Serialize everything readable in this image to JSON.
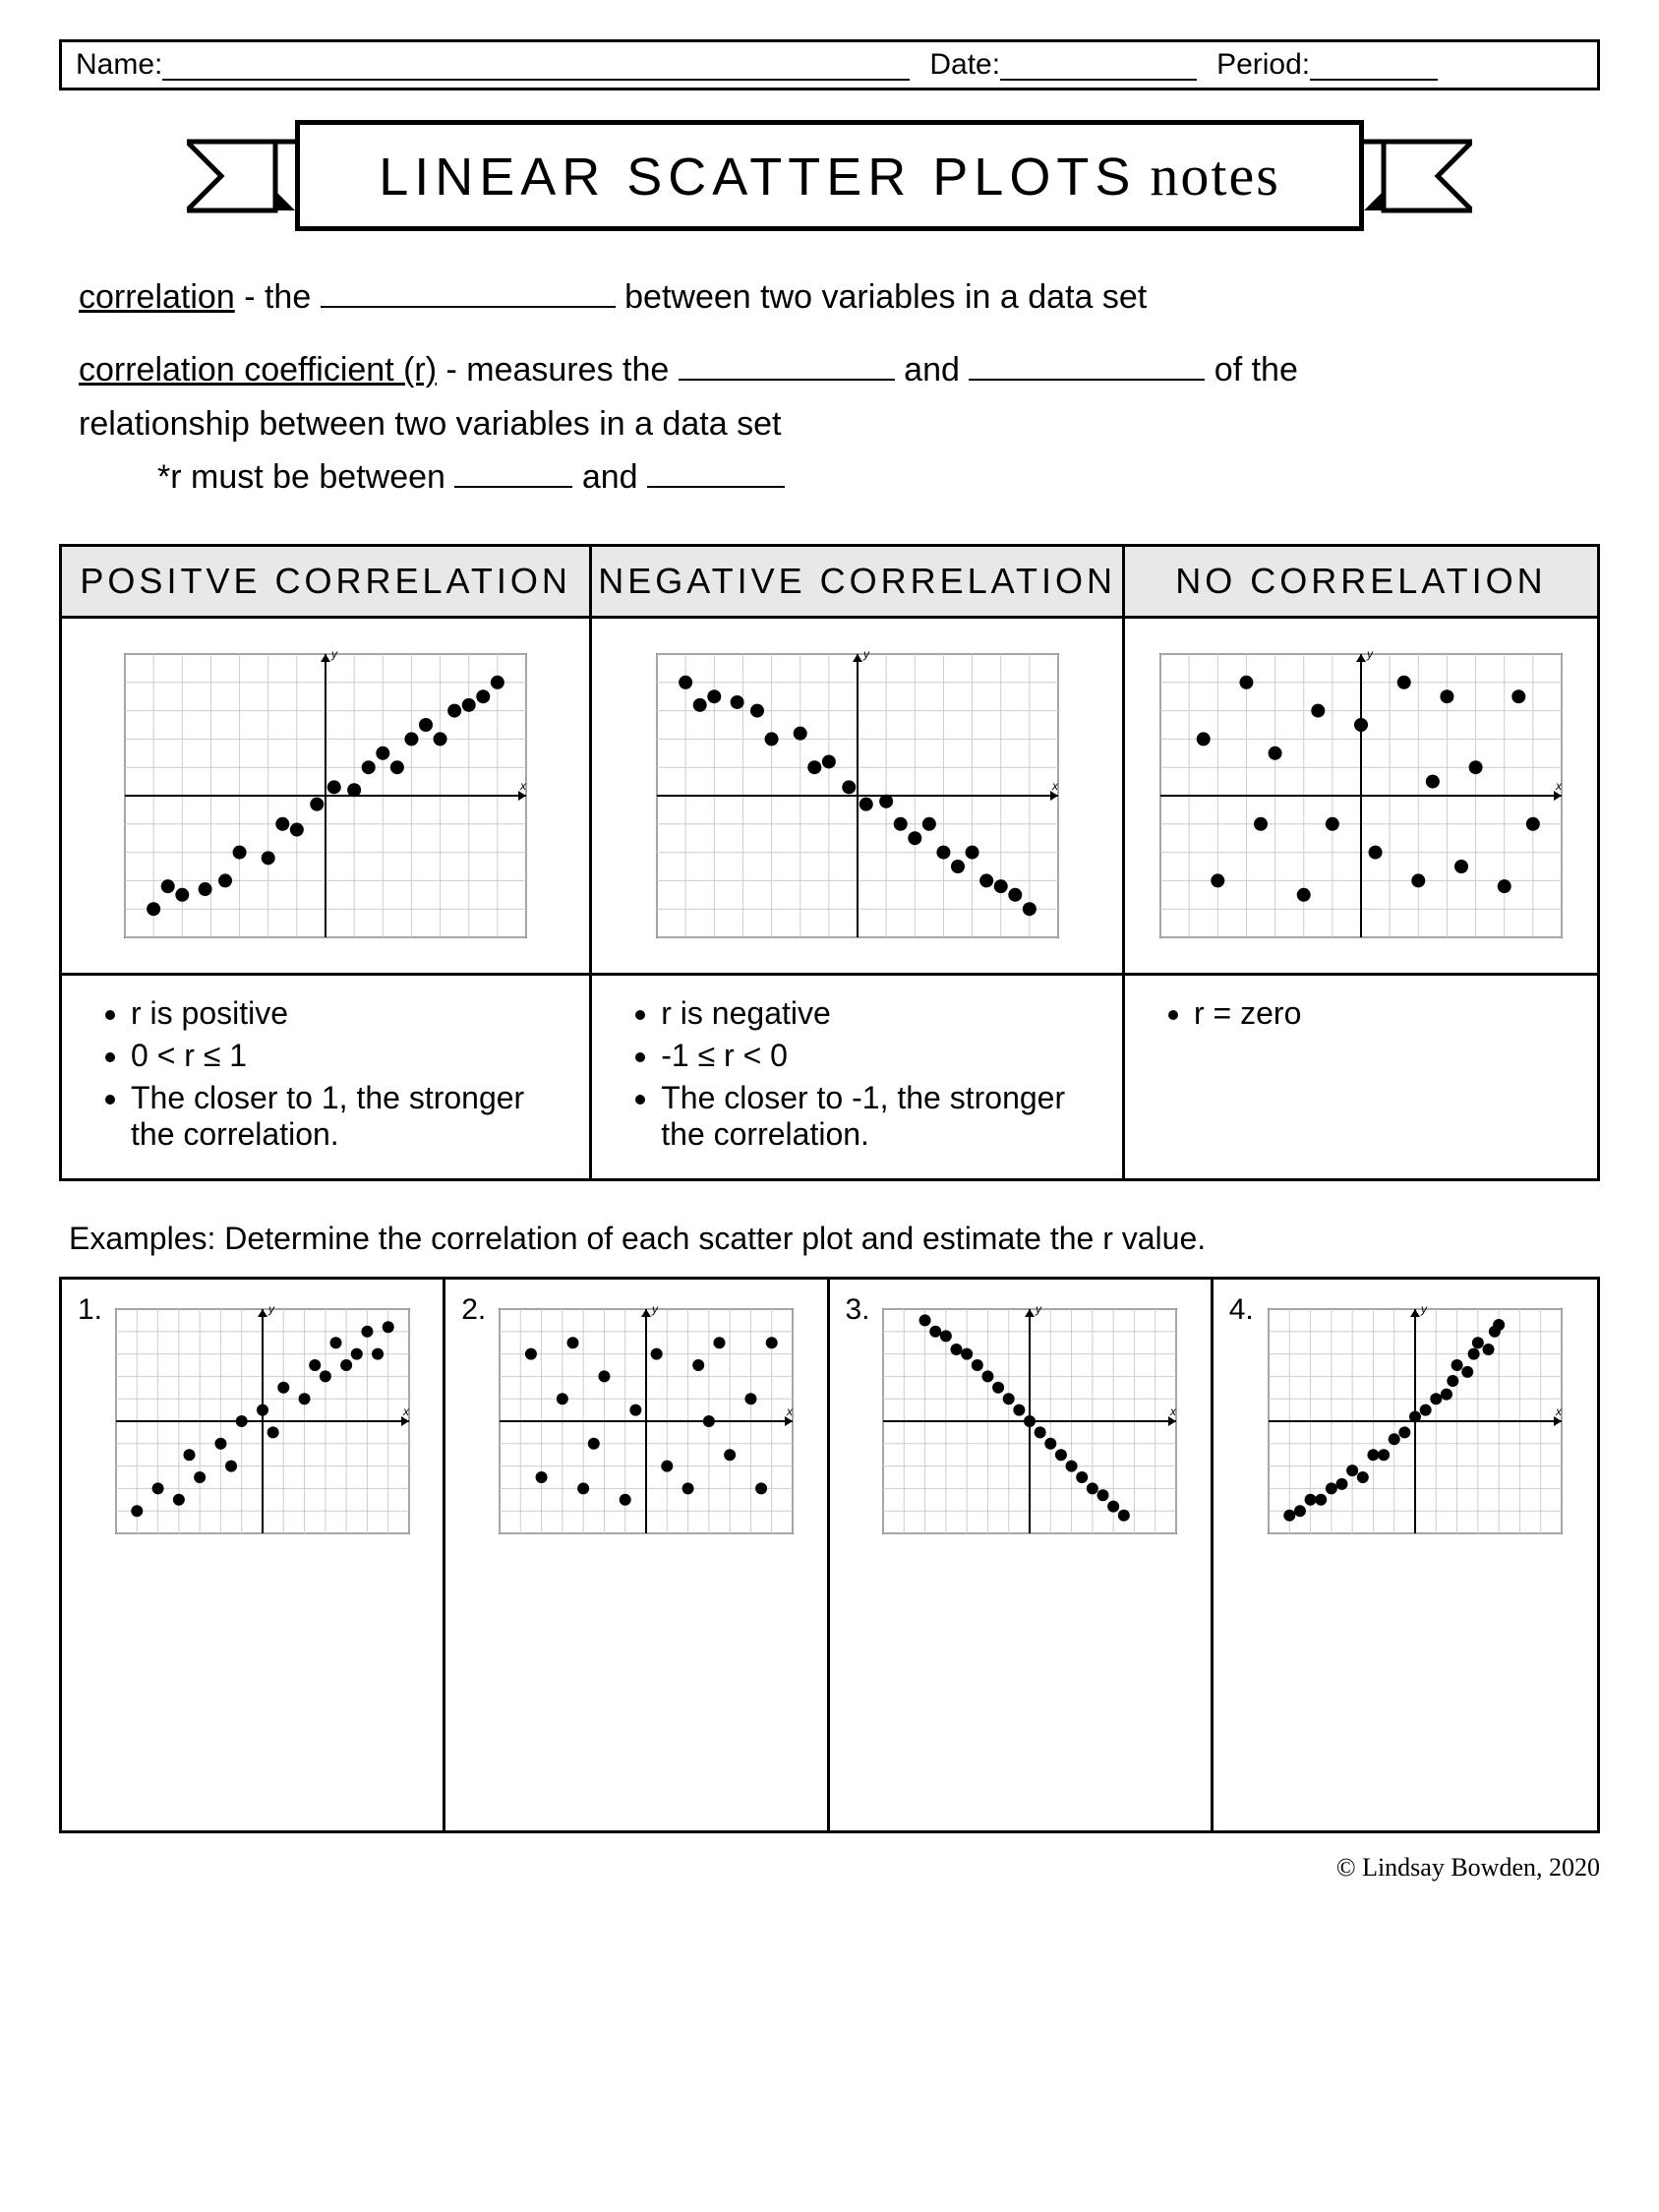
{
  "header": {
    "name_label": "Name:",
    "date_label": "Date:",
    "period_label": "Period:"
  },
  "title": {
    "main": "LINEAR SCATTER PLOTS",
    "script": "notes"
  },
  "definitions": {
    "line1_term": "correlation",
    "line1_rest_a": " - the ",
    "line1_rest_b": " between two variables in a data set",
    "line2_term": "correlation coefficient (r)",
    "line2_a": " - measures the ",
    "line2_b": " and ",
    "line2_c": " of the",
    "line3": "relationship between two variables in a data set",
    "line4_a": "*r must be between ",
    "line4_b": " and "
  },
  "columns": [
    {
      "header": "POSITVE CORRELATION",
      "notes": [
        "r is positive",
        "0 < r ≤ 1",
        "The closer to 1, the stronger the correlation."
      ],
      "plot": {
        "xrange": [
          -7,
          7
        ],
        "yrange": [
          -5,
          5
        ],
        "grid_color": "#cccccc",
        "axis_color": "#000000",
        "point_color": "#000000",
        "point_r": 7,
        "xlabel": "x",
        "ylabel": "y",
        "points": [
          [
            -6,
            -4
          ],
          [
            -5.5,
            -3.2
          ],
          [
            -5,
            -3.5
          ],
          [
            -4.2,
            -3.3
          ],
          [
            -3.5,
            -3
          ],
          [
            -3,
            -2
          ],
          [
            -2,
            -2.2
          ],
          [
            -1.5,
            -1
          ],
          [
            -1,
            -1.2
          ],
          [
            -0.3,
            -0.3
          ],
          [
            0.3,
            0.3
          ],
          [
            1,
            0.2
          ],
          [
            1.5,
            1
          ],
          [
            2,
            1.5
          ],
          [
            2.5,
            1
          ],
          [
            3,
            2
          ],
          [
            3.5,
            2.5
          ],
          [
            4,
            2
          ],
          [
            4.5,
            3
          ],
          [
            5,
            3.2
          ],
          [
            5.5,
            3.5
          ],
          [
            6,
            4
          ]
        ]
      }
    },
    {
      "header": "NEGATIVE CORRELATION",
      "notes": [
        "r is negative",
        "-1 ≤ r < 0",
        "The closer to -1, the stronger the correlation."
      ],
      "plot": {
        "xrange": [
          -7,
          7
        ],
        "yrange": [
          -5,
          5
        ],
        "grid_color": "#cccccc",
        "axis_color": "#000000",
        "point_color": "#000000",
        "point_r": 7,
        "xlabel": "x",
        "ylabel": "y",
        "points": [
          [
            -6,
            4
          ],
          [
            -5.5,
            3.2
          ],
          [
            -5,
            3.5
          ],
          [
            -4.2,
            3.3
          ],
          [
            -3.5,
            3
          ],
          [
            -3,
            2
          ],
          [
            -2,
            2.2
          ],
          [
            -1.5,
            1
          ],
          [
            -1,
            1.2
          ],
          [
            -0.3,
            0.3
          ],
          [
            0.3,
            -0.3
          ],
          [
            1,
            -0.2
          ],
          [
            1.5,
            -1
          ],
          [
            2,
            -1.5
          ],
          [
            2.5,
            -1
          ],
          [
            3,
            -2
          ],
          [
            3.5,
            -2.5
          ],
          [
            4,
            -2
          ],
          [
            4.5,
            -3
          ],
          [
            5,
            -3.2
          ],
          [
            5.5,
            -3.5
          ],
          [
            6,
            -4
          ]
        ]
      }
    },
    {
      "header": "NO CORRELATION",
      "notes": [
        "r = zero"
      ],
      "plot": {
        "xrange": [
          -7,
          7
        ],
        "yrange": [
          -5,
          5
        ],
        "grid_color": "#cccccc",
        "axis_color": "#000000",
        "point_color": "#000000",
        "point_r": 7,
        "xlabel": "x",
        "ylabel": "y",
        "points": [
          [
            -5.5,
            2
          ],
          [
            -5,
            -3
          ],
          [
            -4,
            4
          ],
          [
            -3.5,
            -1
          ],
          [
            -3,
            1.5
          ],
          [
            -2,
            -3.5
          ],
          [
            -1.5,
            3
          ],
          [
            -1,
            -1
          ],
          [
            0,
            2.5
          ],
          [
            0.5,
            -2
          ],
          [
            1.5,
            4
          ],
          [
            2,
            -3
          ],
          [
            2.5,
            0.5
          ],
          [
            3,
            3.5
          ],
          [
            3.5,
            -2.5
          ],
          [
            4,
            1
          ],
          [
            5,
            -3.2
          ],
          [
            5.5,
            3.5
          ],
          [
            6,
            -1
          ]
        ]
      }
    }
  ],
  "examples_label": "Examples: Determine the correlation of each scatter plot and estimate the r value.",
  "examples": [
    {
      "num": "1.",
      "plot": {
        "xrange": [
          -7,
          7
        ],
        "yrange": [
          -5,
          5
        ],
        "grid_color": "#cccccc",
        "axis_color": "#000000",
        "point_color": "#000000",
        "point_r": 6,
        "xlabel": "x",
        "ylabel": "y",
        "points": [
          [
            -6,
            -4
          ],
          [
            -5,
            -3
          ],
          [
            -4,
            -3.5
          ],
          [
            -3.5,
            -1.5
          ],
          [
            -3,
            -2.5
          ],
          [
            -2,
            -1
          ],
          [
            -1.5,
            -2
          ],
          [
            -1,
            0
          ],
          [
            0,
            0.5
          ],
          [
            0.5,
            -0.5
          ],
          [
            1,
            1.5
          ],
          [
            2,
            1
          ],
          [
            2.5,
            2.5
          ],
          [
            3,
            2
          ],
          [
            3.5,
            3.5
          ],
          [
            4,
            2.5
          ],
          [
            4.5,
            3
          ],
          [
            5,
            4
          ],
          [
            5.5,
            3
          ],
          [
            6,
            4.2
          ]
        ]
      }
    },
    {
      "num": "2.",
      "plot": {
        "xrange": [
          -7,
          7
        ],
        "yrange": [
          -5,
          5
        ],
        "grid_color": "#cccccc",
        "axis_color": "#000000",
        "point_color": "#000000",
        "point_r": 6,
        "xlabel": "x",
        "ylabel": "y",
        "points": [
          [
            -5.5,
            3
          ],
          [
            -5,
            -2.5
          ],
          [
            -4,
            1
          ],
          [
            -3.5,
            3.5
          ],
          [
            -3,
            -3
          ],
          [
            -2.5,
            -1
          ],
          [
            -2,
            2
          ],
          [
            -1,
            -3.5
          ],
          [
            -0.5,
            0.5
          ],
          [
            0.5,
            3
          ],
          [
            1,
            -2
          ],
          [
            2,
            -3
          ],
          [
            2.5,
            2.5
          ],
          [
            3,
            0
          ],
          [
            3.5,
            3.5
          ],
          [
            4,
            -1.5
          ],
          [
            5,
            1
          ],
          [
            5.5,
            -3
          ],
          [
            6,
            3.5
          ]
        ]
      }
    },
    {
      "num": "3.",
      "plot": {
        "xrange": [
          -7,
          7
        ],
        "yrange": [
          -5,
          5
        ],
        "grid_color": "#cccccc",
        "axis_color": "#000000",
        "point_color": "#000000",
        "point_r": 6,
        "xlabel": "x",
        "ylabel": "y",
        "points": [
          [
            -5,
            4.5
          ],
          [
            -4.5,
            4
          ],
          [
            -4,
            3.8
          ],
          [
            -3.5,
            3.2
          ],
          [
            -3,
            3
          ],
          [
            -2.5,
            2.5
          ],
          [
            -2,
            2
          ],
          [
            -1.5,
            1.5
          ],
          [
            -1,
            1
          ],
          [
            -0.5,
            0.5
          ],
          [
            0,
            0
          ],
          [
            0.5,
            -0.5
          ],
          [
            1,
            -1
          ],
          [
            1.5,
            -1.5
          ],
          [
            2,
            -2
          ],
          [
            2.5,
            -2.5
          ],
          [
            3,
            -3
          ],
          [
            3.5,
            -3.3
          ],
          [
            4,
            -3.8
          ],
          [
            4.5,
            -4.2
          ]
        ]
      }
    },
    {
      "num": "4.",
      "plot": {
        "xrange": [
          -7,
          7
        ],
        "yrange": [
          -5,
          5
        ],
        "grid_color": "#cccccc",
        "axis_color": "#000000",
        "point_color": "#000000",
        "point_r": 6,
        "xlabel": "x",
        "ylabel": "y",
        "points": [
          [
            -6,
            -4.2
          ],
          [
            -5.5,
            -4
          ],
          [
            -5,
            -3.5
          ],
          [
            -4.5,
            -3.5
          ],
          [
            -4,
            -3
          ],
          [
            -3.5,
            -2.8
          ],
          [
            -3,
            -2.2
          ],
          [
            -2.5,
            -2.5
          ],
          [
            -2,
            -1.5
          ],
          [
            -1.5,
            -1.5
          ],
          [
            -1,
            -0.8
          ],
          [
            -0.5,
            -0.5
          ],
          [
            0,
            0.2
          ],
          [
            0.5,
            0.5
          ],
          [
            1,
            1
          ],
          [
            1.5,
            1.2
          ],
          [
            1.8,
            1.8
          ],
          [
            2,
            2.5
          ],
          [
            2.5,
            2.2
          ],
          [
            2.8,
            3
          ],
          [
            3,
            3.5
          ],
          [
            3.5,
            3.2
          ],
          [
            3.8,
            4
          ],
          [
            4,
            4.3
          ]
        ]
      }
    }
  ],
  "footer": "© Lindsay Bowden, 2020"
}
